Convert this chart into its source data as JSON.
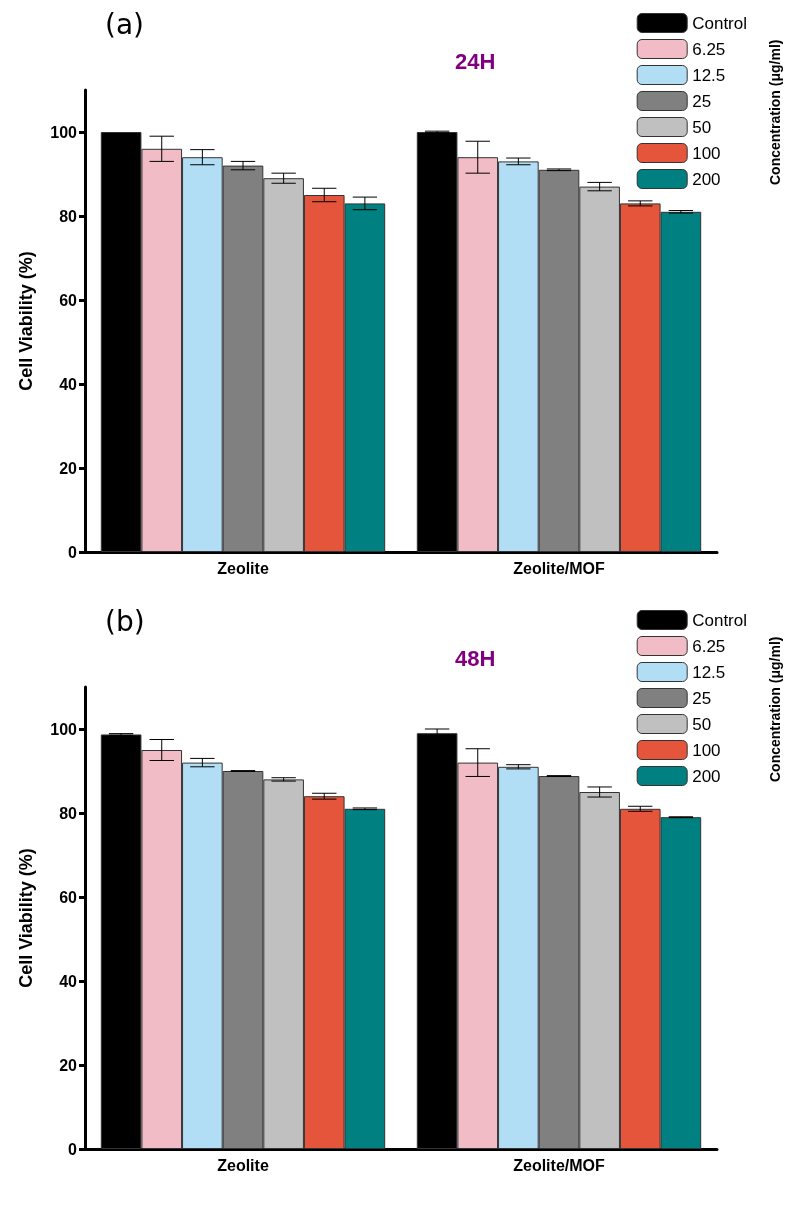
{
  "chart_data": [
    {
      "type": "bar",
      "title": "(a)",
      "annotations": [
        "24H"
      ],
      "ylabel": "Cell Viability (%)",
      "legend_title": "Concentration (μg/ml)",
      "legend": "top right",
      "categories": [
        "Zeolite",
        "Zeolite/MOF"
      ],
      "ylim": [
        0,
        110
      ],
      "yticks": [
        0,
        20,
        40,
        60,
        80,
        100
      ],
      "grid": false,
      "series": [
        {
          "name": "Control",
          "color": "#000000",
          "values": [
            100,
            100
          ],
          "errors": [
            null,
            0.2
          ]
        },
        {
          "name": "6.25",
          "color": "#f2bcc6",
          "values": [
            96,
            94
          ],
          "errors": [
            3,
            3.8
          ]
        },
        {
          "name": "12.5",
          "color": "#b2def5",
          "values": [
            94,
            93
          ],
          "errors": [
            1.8,
            0.8
          ]
        },
        {
          "name": "25",
          "color": "#808080",
          "values": [
            92,
            91
          ],
          "errors": [
            1,
            0.2
          ]
        },
        {
          "name": "50",
          "color": "#c0c0c0",
          "values": [
            89,
            87
          ],
          "errors": [
            1.2,
            1
          ]
        },
        {
          "name": "100",
          "color": "#e5553b",
          "values": [
            85,
            83
          ],
          "errors": [
            1.6,
            0.6
          ]
        },
        {
          "name": "200",
          "color": "#008080",
          "values": [
            83,
            81
          ],
          "errors": [
            1.5,
            0.3
          ]
        }
      ]
    },
    {
      "type": "bar",
      "title": "(b)",
      "annotations": [
        "48H"
      ],
      "ylabel": "Cell Viability (%)",
      "legend_title": "Concentration (μg/ml)",
      "legend": "top right",
      "categories": [
        "Zeolite",
        "Zeolite/MOF"
      ],
      "ylim": [
        0,
        110
      ],
      "yticks": [
        0,
        20,
        40,
        60,
        80,
        100
      ],
      "grid": false,
      "series": [
        {
          "name": "Control",
          "color": "#000000",
          "values": [
            98.7,
            99
          ],
          "errors": [
            0.2,
            1
          ]
        },
        {
          "name": "6.25",
          "color": "#f2bcc6",
          "values": [
            95,
            92
          ],
          "errors": [
            2.5,
            3.3
          ]
        },
        {
          "name": "12.5",
          "color": "#b2def5",
          "values": [
            92,
            91
          ],
          "errors": [
            1,
            0.5
          ]
        },
        {
          "name": "25",
          "color": "#808080",
          "values": [
            90,
            88.8
          ],
          "errors": [
            0.1,
            0.1
          ]
        },
        {
          "name": "50",
          "color": "#c0c0c0",
          "values": [
            88,
            85
          ],
          "errors": [
            0.4,
            1.2
          ]
        },
        {
          "name": "100",
          "color": "#e5553b",
          "values": [
            84,
            81
          ],
          "errors": [
            0.7,
            0.6
          ]
        },
        {
          "name": "200",
          "color": "#008080",
          "values": [
            81,
            79
          ],
          "errors": [
            0.2,
            0.1
          ]
        }
      ]
    }
  ]
}
